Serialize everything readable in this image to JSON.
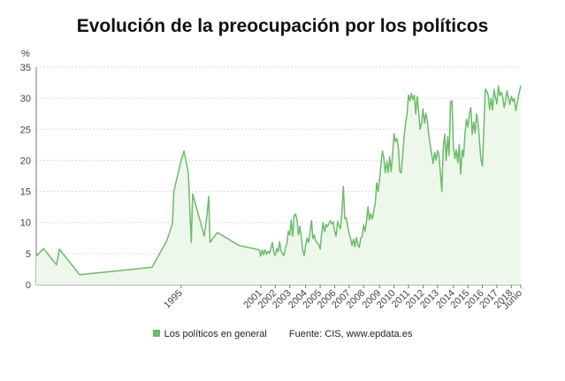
{
  "chart_data": {
    "type": "area",
    "title": "Evolución de la preocupación por los políticos",
    "ylabel": "%",
    "ylim": [
      0,
      35
    ],
    "yticks": [
      0,
      5,
      10,
      15,
      20,
      25,
      30,
      35
    ],
    "xlim": [
      1985,
      2018.45
    ],
    "xticks": [
      {
        "label": "1995",
        "x": 1995.0
      },
      {
        "label": "2001",
        "x": 2000.5
      },
      {
        "label": "2002",
        "x": 2001.5
      },
      {
        "label": "2003",
        "x": 2002.5
      },
      {
        "label": "2004",
        "x": 2003.6
      },
      {
        "label": "2005",
        "x": 2004.6
      },
      {
        "label": "2006",
        "x": 2005.6
      },
      {
        "label": "2007",
        "x": 2006.6
      },
      {
        "label": "2008",
        "x": 2007.6
      },
      {
        "label": "2009",
        "x": 2008.7
      },
      {
        "label": "2010",
        "x": 2009.7
      },
      {
        "label": "2011",
        "x": 2010.7
      },
      {
        "label": "2012",
        "x": 2011.7
      },
      {
        "label": "2013",
        "x": 2012.7
      },
      {
        "label": "2014",
        "x": 2013.8
      },
      {
        "label": "2015",
        "x": 2014.8
      },
      {
        "label": "2016",
        "x": 2015.8
      },
      {
        "label": "2017",
        "x": 2016.8
      },
      {
        "label": "2018",
        "x": 2017.8
      },
      {
        "label": "Junio",
        "x": 2018.45
      }
    ],
    "grid": true,
    "legend_position": "bottom",
    "color": "#6dbb6a",
    "fill_color": "#eef7ec",
    "series": [
      {
        "name": "Los políticos en general",
        "points": [
          [
            1985.0,
            4.6
          ],
          [
            1985.5,
            5.8
          ],
          [
            1986.4,
            3.2
          ],
          [
            1986.6,
            5.7
          ],
          [
            1988.0,
            1.6
          ],
          [
            1993.0,
            2.8
          ],
          [
            1994.0,
            7.0
          ],
          [
            1994.4,
            9.8
          ],
          [
            1994.5,
            15.0
          ],
          [
            1995.0,
            20.0
          ],
          [
            1995.2,
            21.5
          ],
          [
            1995.5,
            18.0
          ],
          [
            1995.7,
            6.8
          ],
          [
            1995.8,
            14.6
          ],
          [
            1996.3,
            10.4
          ],
          [
            1996.6,
            7.8
          ],
          [
            1996.8,
            11.5
          ],
          [
            1996.9,
            14.2
          ],
          [
            1997.0,
            6.8
          ],
          [
            1997.5,
            8.4
          ],
          [
            1999.0,
            6.3
          ],
          [
            2000.4,
            5.6
          ],
          [
            2000.5,
            4.6
          ],
          [
            2000.6,
            5.6
          ],
          [
            2000.7,
            4.8
          ],
          [
            2000.8,
            5.6
          ],
          [
            2000.9,
            4.9
          ],
          [
            2001.0,
            5.4
          ],
          [
            2001.1,
            5.0
          ],
          [
            2001.3,
            6.8
          ],
          [
            2001.4,
            5.2
          ],
          [
            2001.5,
            4.7
          ],
          [
            2001.6,
            5.8
          ],
          [
            2001.7,
            5.3
          ],
          [
            2001.8,
            6.9
          ],
          [
            2001.9,
            5.4
          ],
          [
            2002.0,
            5.0
          ],
          [
            2002.1,
            4.7
          ],
          [
            2002.2,
            6.0
          ],
          [
            2002.3,
            6.6
          ],
          [
            2002.4,
            8.6
          ],
          [
            2002.5,
            8.0
          ],
          [
            2002.6,
            10.4
          ],
          [
            2002.7,
            7.8
          ],
          [
            2002.8,
            11.1
          ],
          [
            2002.9,
            11.4
          ],
          [
            2003.0,
            10.5
          ],
          [
            2003.1,
            8.0
          ],
          [
            2003.2,
            9.4
          ],
          [
            2003.3,
            7.6
          ],
          [
            2003.4,
            5.5
          ],
          [
            2003.5,
            4.7
          ],
          [
            2003.6,
            6.4
          ],
          [
            2003.7,
            7.5
          ],
          [
            2003.8,
            6.8
          ],
          [
            2003.9,
            8.3
          ],
          [
            2004.0,
            10.3
          ],
          [
            2004.1,
            7.4
          ],
          [
            2004.2,
            8.0
          ],
          [
            2004.3,
            7.0
          ],
          [
            2004.5,
            6.5
          ],
          [
            2004.6,
            5.7
          ],
          [
            2004.7,
            8.2
          ],
          [
            2004.8,
            10.0
          ],
          [
            2004.9,
            8.5
          ],
          [
            2005.0,
            9.7
          ],
          [
            2005.1,
            9.3
          ],
          [
            2005.3,
            10.3
          ],
          [
            2005.4,
            9.8
          ],
          [
            2005.5,
            10.1
          ],
          [
            2005.6,
            8.6
          ],
          [
            2005.7,
            7.8
          ],
          [
            2005.8,
            10.2
          ],
          [
            2005.9,
            9.5
          ],
          [
            2006.0,
            9.0
          ],
          [
            2006.1,
            11.6
          ],
          [
            2006.2,
            15.8
          ],
          [
            2006.3,
            10.6
          ],
          [
            2006.4,
            10.7
          ],
          [
            2006.6,
            8.2
          ],
          [
            2006.7,
            7.5
          ],
          [
            2006.8,
            6.3
          ],
          [
            2006.9,
            7.3
          ],
          [
            2007.0,
            6.1
          ],
          [
            2007.1,
            7.6
          ],
          [
            2007.2,
            6.4
          ],
          [
            2007.3,
            6.0
          ],
          [
            2007.4,
            7.5
          ],
          [
            2007.5,
            7.7
          ],
          [
            2007.6,
            9.6
          ],
          [
            2007.7,
            8.6
          ],
          [
            2007.8,
            10.2
          ],
          [
            2007.9,
            12.5
          ],
          [
            2008.0,
            10.4
          ],
          [
            2008.1,
            11.4
          ],
          [
            2008.2,
            10.6
          ],
          [
            2008.3,
            11.8
          ],
          [
            2008.4,
            13.1
          ],
          [
            2008.5,
            16.4
          ],
          [
            2008.6,
            15.0
          ],
          [
            2008.7,
            17.0
          ],
          [
            2008.8,
            19.5
          ],
          [
            2008.9,
            21.5
          ],
          [
            2009.0,
            20.3
          ],
          [
            2009.1,
            18.0
          ],
          [
            2009.2,
            19.8
          ],
          [
            2009.3,
            18.0
          ],
          [
            2009.4,
            20.6
          ],
          [
            2009.5,
            18.2
          ],
          [
            2009.6,
            21.0
          ],
          [
            2009.7,
            24.3
          ],
          [
            2009.8,
            23.0
          ],
          [
            2009.9,
            23.5
          ],
          [
            2010.0,
            22.0
          ],
          [
            2010.1,
            18.2
          ],
          [
            2010.2,
            18.0
          ],
          [
            2010.3,
            21.0
          ],
          [
            2010.4,
            24.0
          ],
          [
            2010.5,
            26.0
          ],
          [
            2010.6,
            27.5
          ],
          [
            2010.7,
            30.5
          ],
          [
            2010.8,
            29.6
          ],
          [
            2010.9,
            30.8
          ],
          [
            2011.0,
            29.8
          ],
          [
            2011.1,
            30.5
          ],
          [
            2011.2,
            27.5
          ],
          [
            2011.3,
            30.3
          ],
          [
            2011.4,
            27.8
          ],
          [
            2011.5,
            25.0
          ],
          [
            2011.6,
            26.0
          ],
          [
            2011.7,
            28.3
          ],
          [
            2011.8,
            26.0
          ],
          [
            2011.9,
            27.6
          ],
          [
            2012.0,
            26.3
          ],
          [
            2012.1,
            24.0
          ],
          [
            2012.2,
            22.5
          ],
          [
            2012.3,
            21.0
          ],
          [
            2012.4,
            19.5
          ],
          [
            2012.5,
            21.3
          ],
          [
            2012.6,
            20.0
          ],
          [
            2012.7,
            21.6
          ],
          [
            2012.8,
            20.8
          ],
          [
            2012.9,
            18.0
          ],
          [
            2013.0,
            15.0
          ],
          [
            2013.1,
            22.2
          ],
          [
            2013.2,
            24.2
          ],
          [
            2013.3,
            20.0
          ],
          [
            2013.4,
            23.8
          ],
          [
            2013.5,
            20.8
          ],
          [
            2013.6,
            29.4
          ],
          [
            2013.7,
            29.6
          ],
          [
            2013.8,
            22.3
          ],
          [
            2013.9,
            20.3
          ],
          [
            2014.0,
            21.7
          ],
          [
            2014.1,
            19.6
          ],
          [
            2014.2,
            22.6
          ],
          [
            2014.3,
            17.8
          ],
          [
            2014.4,
            21.7
          ],
          [
            2014.5,
            20.6
          ],
          [
            2014.6,
            24.3
          ],
          [
            2014.7,
            26.6
          ],
          [
            2014.8,
            25.4
          ],
          [
            2014.9,
            27.4
          ],
          [
            2015.0,
            28.5
          ],
          [
            2015.1,
            24.2
          ],
          [
            2015.2,
            26.2
          ],
          [
            2015.3,
            24.4
          ],
          [
            2015.4,
            27.5
          ],
          [
            2015.5,
            26.0
          ],
          [
            2015.6,
            23.1
          ],
          [
            2015.7,
            20.2
          ],
          [
            2015.8,
            19.1
          ],
          [
            2015.9,
            25.0
          ],
          [
            2016.0,
            31.5
          ],
          [
            2016.1,
            31.1
          ],
          [
            2016.2,
            30.5
          ],
          [
            2016.3,
            28.2
          ],
          [
            2016.4,
            30.0
          ],
          [
            2016.5,
            28.1
          ],
          [
            2016.6,
            31.4
          ],
          [
            2016.7,
            30.2
          ],
          [
            2016.8,
            29.1
          ],
          [
            2016.9,
            32.0
          ],
          [
            2017.0,
            30.4
          ],
          [
            2017.1,
            31.0
          ],
          [
            2017.2,
            30.2
          ],
          [
            2017.3,
            28.5
          ],
          [
            2017.4,
            29.6
          ],
          [
            2017.5,
            31.2
          ],
          [
            2017.6,
            30.0
          ],
          [
            2017.7,
            29.0
          ],
          [
            2017.8,
            30.3
          ],
          [
            2017.9,
            29.5
          ],
          [
            2018.0,
            30.0
          ],
          [
            2018.1,
            28.0
          ],
          [
            2018.2,
            29.2
          ],
          [
            2018.3,
            30.5
          ],
          [
            2018.45,
            32.0
          ]
        ]
      }
    ]
  },
  "legend": {
    "series_label": "Los políticos en general",
    "source": "Fuente: CIS, www.epdata.es"
  }
}
